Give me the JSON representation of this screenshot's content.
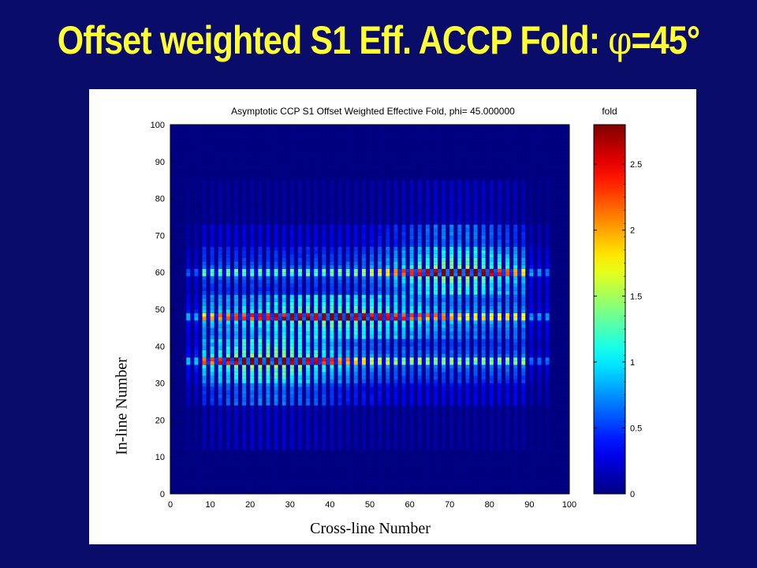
{
  "slide": {
    "title_prefix": "Offset weighted S1 Eff. ACCP Fold: ",
    "title_symbol": "φ",
    "title_suffix": "=45°"
  },
  "chart_data": {
    "type": "heatmap",
    "title": "Asymptotic CCP S1 Offset Weighted Effective Fold, phi= 45.000000",
    "xlabel": "Cross-line Number",
    "ylabel": "In-line Number",
    "xlim": [
      0,
      100
    ],
    "ylim": [
      0,
      100
    ],
    "x_ticks": [
      "0",
      "10",
      "20",
      "30",
      "40",
      "50",
      "60",
      "70",
      "80",
      "90",
      "100"
    ],
    "y_ticks": [
      "0",
      "10",
      "20",
      "30",
      "40",
      "50",
      "60",
      "70",
      "80",
      "90",
      "100"
    ],
    "grid": true,
    "colorbar": {
      "label": "fold",
      "colormap": "jet",
      "range": [
        0,
        2.8
      ],
      "ticks": [
        "0",
        "0.5",
        "1",
        "1.5",
        "2",
        "2.5"
      ]
    },
    "description_values": {
      "active_x_range": [
        4,
        95
      ],
      "active_y_range": [
        12,
        85
      ],
      "high_fold_rows": [
        36,
        48,
        60
      ],
      "peak_fold": 2.8
    }
  }
}
